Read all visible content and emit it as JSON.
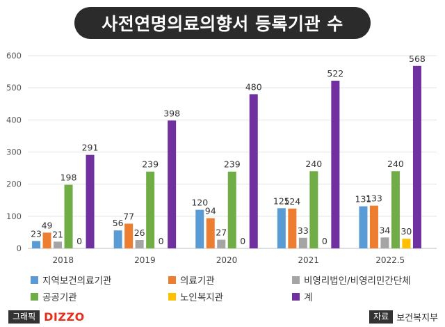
{
  "header": {
    "title": "사전연명의료의향서 등록기관 수"
  },
  "chart_data": {
    "type": "bar",
    "categories": [
      "2018",
      "2019",
      "2020",
      "2021",
      "2022.5"
    ],
    "ylim": [
      0,
      600
    ],
    "yticks": [
      0,
      100,
      200,
      300,
      400,
      500,
      600
    ],
    "grid": true,
    "legend_position": "bottom",
    "series": [
      {
        "name": "지역보건의료기관",
        "color": "#5b9bd5",
        "values": [
          23,
          56,
          120,
          125,
          131
        ]
      },
      {
        "name": "의료기관",
        "color": "#ed7d31",
        "values": [
          49,
          77,
          94,
          124,
          133
        ]
      },
      {
        "name": "비영리법인/비영리민간단체",
        "color": "#a5a5a5",
        "values": [
          21,
          26,
          27,
          33,
          34
        ]
      },
      {
        "name": "공공기관",
        "color": "#70ad47",
        "values": [
          198,
          239,
          239,
          240,
          240
        ]
      },
      {
        "name": "노인복지관",
        "color": "#ffc000",
        "values": [
          0,
          0,
          0,
          0,
          30
        ]
      },
      {
        "name": "계",
        "color": "#7030a0",
        "values": [
          291,
          398,
          480,
          522,
          568
        ]
      }
    ]
  },
  "footer": {
    "graphic_label": "그래픽",
    "brand": "DIZZO",
    "source_label": "자료",
    "source_name": "보건복지부"
  }
}
